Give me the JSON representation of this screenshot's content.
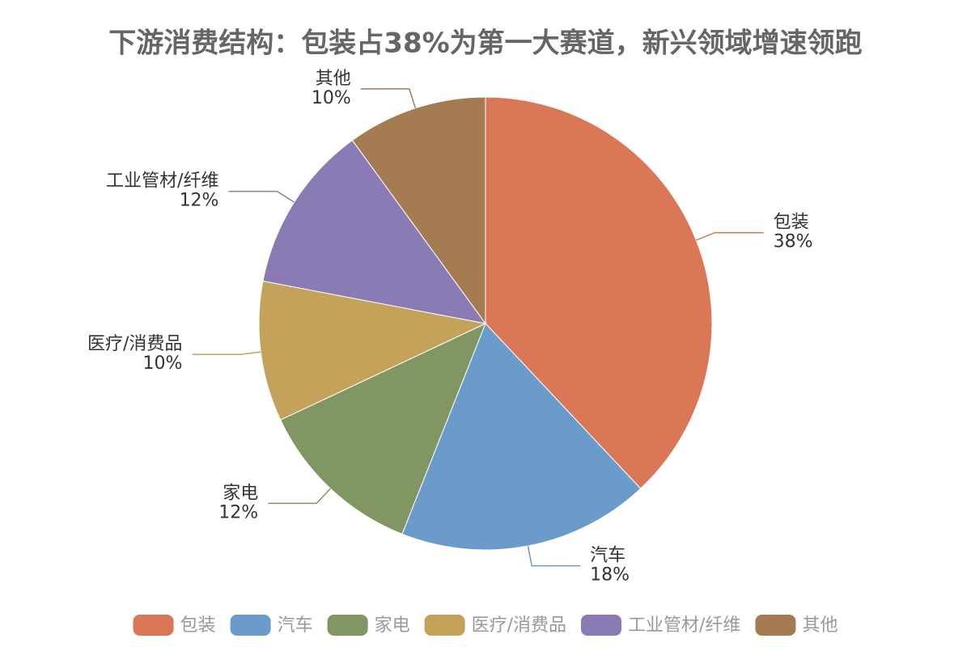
{
  "chart_data": {
    "type": "pie",
    "title": "下游消费结构：包装占38%为第一大赛道，新兴领域增速领跑",
    "categories": [
      "包装",
      "汽车",
      "家电",
      "医疗/消费品",
      "工业管材/纤维",
      "其他"
    ],
    "values": [
      38,
      18,
      12,
      10,
      12,
      10
    ],
    "value_labels": [
      "38%",
      "18%",
      "12%",
      "10%",
      "12%",
      "10%"
    ],
    "colors": [
      "#d97757",
      "#6b9bcb",
      "#829664",
      "#c4a25a",
      "#8b7bb5",
      "#a57c52"
    ],
    "legend": "bottom"
  }
}
